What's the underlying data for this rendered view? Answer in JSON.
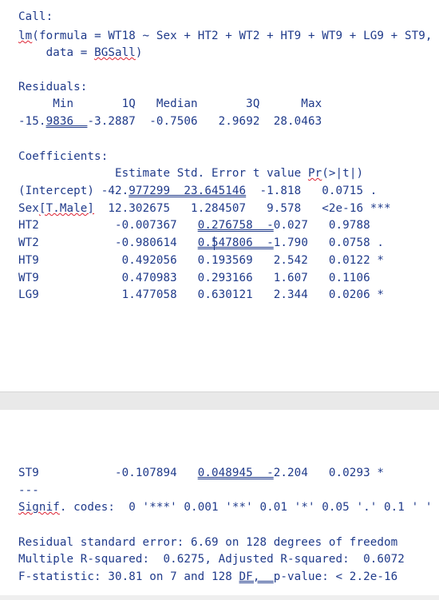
{
  "call": {
    "header": "Call:",
    "line1_fn": "lm",
    "line1_rest": "(formula = WT18 ~ Sex + HT2 + WT2 + HT9 + WT9 + LG9 + ST9,",
    "line2_pre": "    data = ",
    "line2_data": "BGSall",
    "line2_post": ")"
  },
  "residuals": {
    "header": "Residuals:",
    "labels": "     Min       1Q   Median       3Q      Max",
    "values_a": "-15.",
    "values_b": "9836  ",
    "values_c": "-3.2887  -0.7506   2.9692  28.0463"
  },
  "coefficients": {
    "header": "Coefficients:",
    "col_head_a": "              Estimate Std. Error t value ",
    "col_head_b": "Pr",
    "col_head_c": "(>|t|)",
    "rows": [
      {
        "a": "(Intercept) -42.",
        "b": "977299  23.645146",
        "c": "  -1.818   0.0715 ."
      },
      {
        "a": "Sex",
        "b": "[T.Male]",
        "c": "  12.302675   1.284507   9.578   <2e-16 ***"
      },
      {
        "a": "HT2           -0.007367   ",
        "b": "0.276758  -",
        "c": "0.027   0.9788"
      },
      {
        "a": "WT2           -0.980614   ",
        "b": "0.547806  -",
        "c": "1.790   0.0758 ."
      },
      {
        "a": "HT9            0.492056   0.193569   2.542   0.0122 *",
        "b": "",
        "c": ""
      },
      {
        "a": "WT9            0.470983   0.293166   1.607   0.1106",
        "b": "",
        "c": ""
      },
      {
        "a": "LG9            1.477058   0.630121   2.344   0.0206 *",
        "b": "",
        "c": ""
      }
    ],
    "st9_a": "ST9           -0.107894   ",
    "st9_b": "0.048945  -",
    "st9_c": "2.204   0.0293 *",
    "separator": "---"
  },
  "signif": {
    "word": "Signif",
    "rest": ". codes:  0 '***' 0.001 '**' 0.01 '*' 0.05 '.' 0.1 ' ' 1"
  },
  "summary": {
    "rse": "Residual standard error: 6.69 on 128 degrees of freedom",
    "r2": "Multiple R-squared:  0.6275, Adjusted R-squared:  0.6072",
    "f_a": "F-statistic: 30.81 on 7 and 128 ",
    "f_b": "DF,  ",
    "f_c": "p-value: < 2.2e-16"
  }
}
